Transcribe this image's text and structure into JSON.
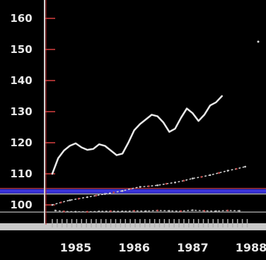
{
  "chart_data": {
    "type": "line",
    "title": "",
    "xlabel": "",
    "ylabel": "",
    "ylim": [
      95,
      162
    ],
    "xlim": [
      1984.6,
      1988.0
    ],
    "y_ticks": [
      100,
      110,
      120,
      130,
      140,
      150,
      160
    ],
    "y_tick_labels": [
      "100",
      "110",
      "120",
      "130",
      "140",
      "150",
      "160"
    ],
    "x_ticks": [
      1985,
      1986,
      1987,
      1988
    ],
    "x_tick_labels": [
      "1985",
      "1986",
      "1987",
      "1988"
    ],
    "grid": false,
    "legend": "none",
    "reference_lines": [
      {
        "y": 104.4,
        "color": "#3a34d8"
      },
      {
        "y": 97.7,
        "color": "#e6e6e6"
      }
    ],
    "series": [
      {
        "name": "",
        "color": "#e8e8e8",
        "style": "solid",
        "x": [
          1984.6,
          1984.7,
          1984.8,
          1984.9,
          1985.0,
          1985.1,
          1985.2,
          1985.3,
          1985.4,
          1985.5,
          1985.6,
          1985.7,
          1985.8,
          1985.9,
          1986.0,
          1986.1,
          1986.2,
          1986.3,
          1986.4,
          1986.5,
          1986.6,
          1986.7,
          1986.8,
          1986.9,
          1987.0,
          1987.1,
          1987.2,
          1987.3,
          1987.4,
          1987.5
        ],
        "values": [
          110.0,
          115.0,
          117.5,
          119.0,
          119.8,
          118.5,
          117.7,
          118.0,
          119.5,
          119.0,
          117.5,
          116.0,
          116.5,
          120.0,
          124.0,
          126.0,
          127.5,
          129.0,
          128.5,
          126.5,
          123.5,
          124.5,
          128.0,
          131.0,
          129.5,
          127.0,
          129.0,
          132.0,
          133.0,
          135.0
        ]
      },
      {
        "name": "",
        "color": "#cfcfcf",
        "style": "dotted",
        "x": [
          1984.6,
          1984.75,
          1984.9,
          1985.05,
          1985.2,
          1985.35,
          1985.5,
          1985.65,
          1985.8,
          1985.95,
          1986.1,
          1986.25,
          1986.4,
          1986.55,
          1986.7,
          1986.85,
          1987.0,
          1987.15,
          1987.3,
          1987.45,
          1987.6,
          1987.75,
          1987.9
        ],
        "values": [
          100.0,
          100.8,
          101.5,
          102.0,
          102.5,
          103.0,
          103.5,
          104.0,
          104.5,
          105.2,
          105.8,
          106.0,
          106.3,
          106.8,
          107.2,
          107.8,
          108.5,
          109.0,
          109.6,
          110.3,
          111.0,
          111.6,
          112.3
        ]
      },
      {
        "name": "",
        "color": "#b8b8b8",
        "style": "dotted",
        "x": [
          1984.65,
          1984.8,
          1985.0,
          1985.2,
          1985.4,
          1985.6,
          1985.8,
          1986.0,
          1986.2,
          1986.4,
          1986.6,
          1986.8,
          1987.0,
          1987.2,
          1987.4,
          1987.6,
          1987.8
        ],
        "values": [
          98.2,
          97.9,
          97.8,
          97.8,
          97.9,
          98.0,
          97.9,
          98.1,
          98.0,
          98.2,
          98.1,
          98.0,
          98.3,
          98.1,
          98.0,
          98.2,
          98.1
        ]
      }
    ]
  }
}
